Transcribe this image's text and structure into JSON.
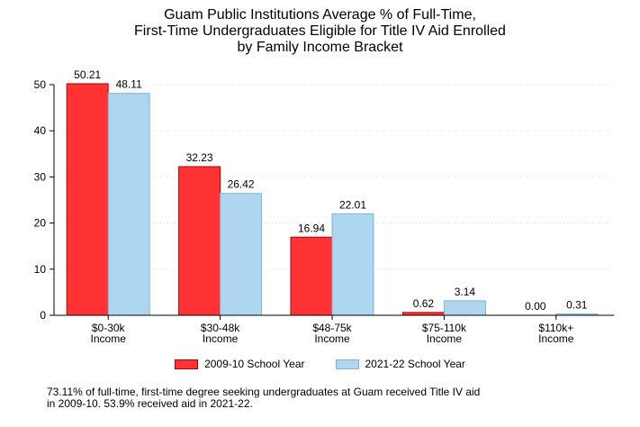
{
  "chart_data": {
    "type": "bar",
    "title_lines": [
      "Guam Public Institutions Average % of Full-Time,",
      "First-Time Undergraduates Eligible for Title IV Aid Enrolled",
      "by Family Income Bracket"
    ],
    "categories": [
      [
        "$0-30k",
        "Income"
      ],
      [
        "$30-48k",
        "Income"
      ],
      [
        "$48-75k",
        "Income"
      ],
      [
        "$75-110k",
        "Income"
      ],
      [
        "$110k+",
        "Income"
      ]
    ],
    "series": [
      {
        "name": "2009-10 School Year",
        "color": "#ff3333",
        "stroke": "#b30000",
        "values": [
          50.21,
          32.23,
          16.94,
          0.62,
          0.0
        ],
        "labels": [
          "50.21",
          "32.23",
          "16.94",
          "0.62",
          "0.00"
        ]
      },
      {
        "name": "2021-22 School Year",
        "color": "#aed6f1",
        "stroke": "#7fb3d5",
        "values": [
          48.11,
          26.42,
          22.01,
          3.14,
          0.31
        ],
        "labels": [
          "48.11",
          "26.42",
          "22.01",
          "3.14",
          "0.31"
        ]
      }
    ],
    "ylim": [
      0,
      50
    ],
    "yticks": [
      0,
      10,
      20,
      30,
      40,
      50
    ],
    "grid": true,
    "legend_position": "bottom"
  },
  "note_lines": [
    "73.11% of full-time, first-time degree seeking undergraduates at Guam received Title IV aid",
    "in 2009-10. 53.9% received aid in 2021-22."
  ]
}
